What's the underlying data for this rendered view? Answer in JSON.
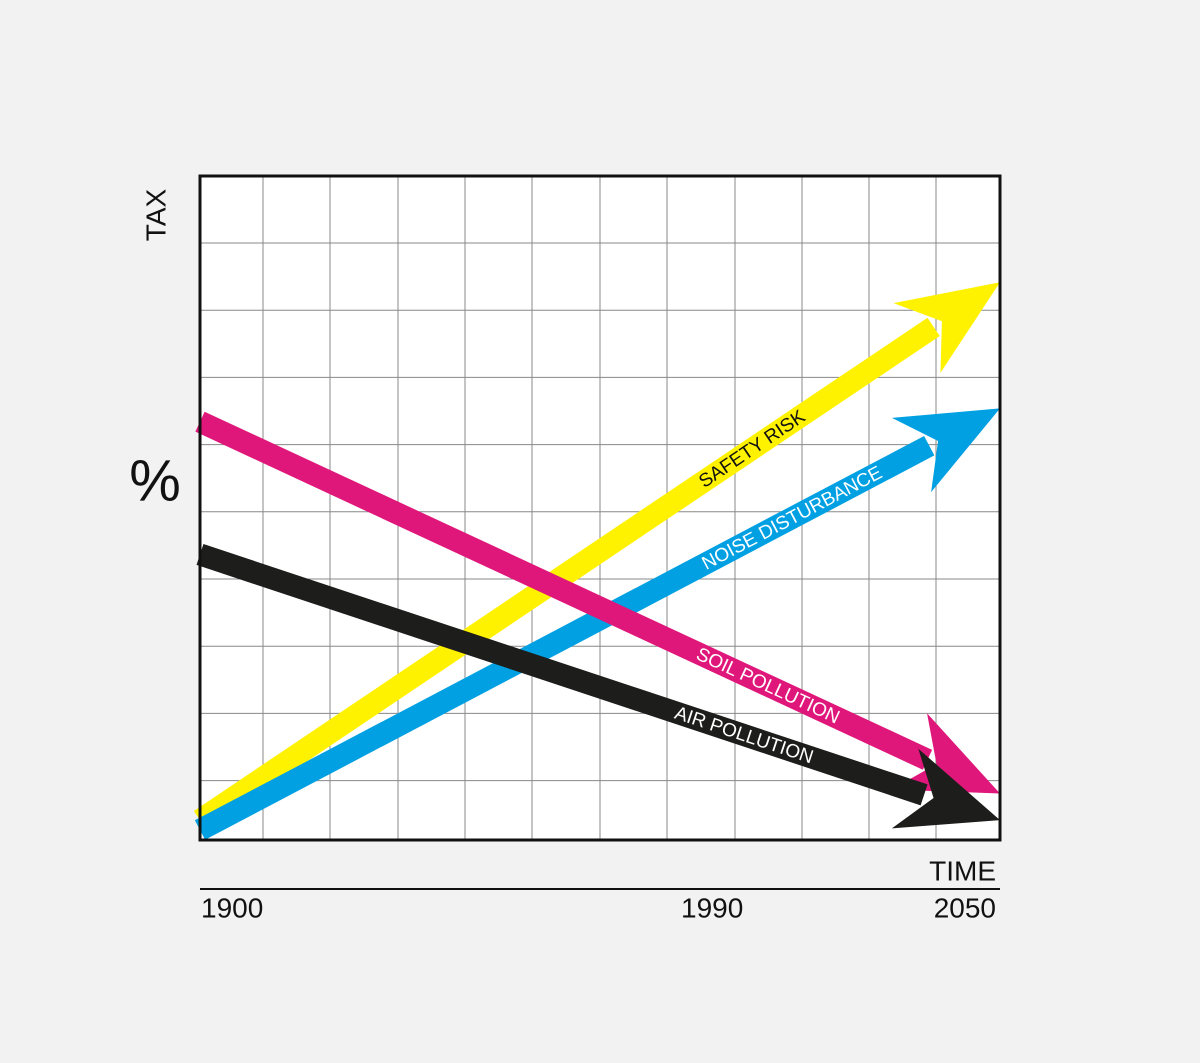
{
  "chart_data": {
    "type": "line",
    "y_label": "TAX",
    "y_unit": "%",
    "x_label": "TIME",
    "x": [
      1900,
      2050
    ],
    "xlim": [
      1900,
      2050
    ],
    "xticks": [
      1900,
      1990,
      2050
    ],
    "ylim": [
      0,
      10
    ],
    "grid": true,
    "series": [
      {
        "name": "SAFETY RISK",
        "color": "#fff200",
        "values": [
          0.3,
          8.4
        ]
      },
      {
        "name": "NOISE DISTURBANCE",
        "color": "#00a0e3",
        "values": [
          0.15,
          6.5
        ]
      },
      {
        "name": "SOIL POLLUTION",
        "color": "#e0177a",
        "values": [
          6.3,
          0.7
        ]
      },
      {
        "name": "AIR POLLUTION",
        "color": "#1d1d1b",
        "values": [
          4.3,
          0.3
        ]
      }
    ]
  }
}
